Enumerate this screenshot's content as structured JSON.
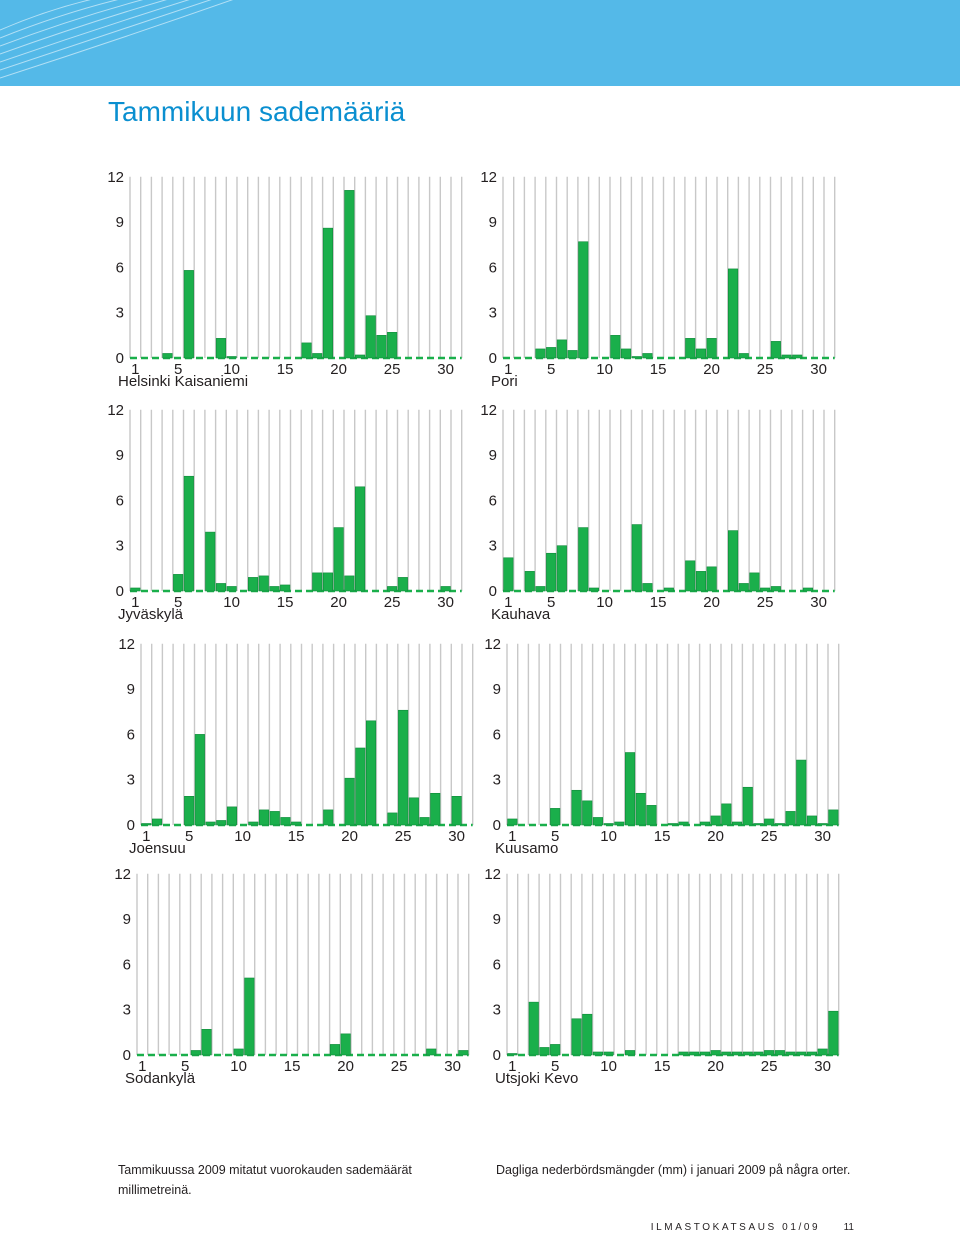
{
  "page": {
    "title": "Tammikuun sademääriä",
    "caption_fi": "Tammikuussa 2009 mitatut vuorokauden sademäärät millimetreinä.",
    "caption_sv": "Dagliga nederbördsmängder (mm) i januari 2009 på några orter.",
    "footer_publication": "ILMASTOKATSAUS 01/09",
    "footer_page": "11"
  },
  "colors": {
    "bar": "#1aaf4b",
    "bar_edge": "#0f8a3a",
    "grid": "#c8c8c8",
    "zero_dash": "#1aaf4b",
    "banner": "#54b9e8",
    "title": "#0a8fd0"
  },
  "chart_data": [
    {
      "type": "bar",
      "station": "Helsinki Kaisaniemi",
      "x": [
        1,
        2,
        3,
        4,
        5,
        6,
        7,
        8,
        9,
        10,
        11,
        12,
        13,
        14,
        15,
        16,
        17,
        18,
        19,
        20,
        21,
        22,
        23,
        24,
        25,
        26,
        27,
        28,
        29,
        30,
        31
      ],
      "xticks": [
        1,
        5,
        10,
        15,
        20,
        25,
        30
      ],
      "yticks": [
        0,
        3,
        6,
        9,
        12
      ],
      "ylim": [
        0,
        12
      ],
      "values": [
        0,
        0,
        0,
        0.3,
        0,
        5.8,
        0,
        0,
        1.3,
        0.1,
        0,
        0,
        0,
        0,
        0,
        0,
        1.0,
        0.3,
        8.6,
        0,
        11.1,
        0.2,
        2.8,
        1.5,
        1.7,
        0,
        0,
        0,
        0,
        0,
        0
      ]
    },
    {
      "type": "bar",
      "station": "Pori",
      "x": [
        1,
        2,
        3,
        4,
        5,
        6,
        7,
        8,
        9,
        10,
        11,
        12,
        13,
        14,
        15,
        16,
        17,
        18,
        19,
        20,
        21,
        22,
        23,
        24,
        25,
        26,
        27,
        28,
        29,
        30,
        31
      ],
      "xticks": [
        1,
        5,
        10,
        15,
        20,
        25,
        30
      ],
      "yticks": [
        0,
        3,
        6,
        9,
        12
      ],
      "ylim": [
        0,
        12
      ],
      "values": [
        0,
        0,
        0,
        0.6,
        0.7,
        1.2,
        0.5,
        7.7,
        0,
        0,
        1.5,
        0.6,
        0.1,
        0.3,
        0,
        0,
        0,
        1.3,
        0.6,
        1.3,
        0,
        5.9,
        0.3,
        0,
        0,
        1.1,
        0.2,
        0.2,
        0,
        0,
        0
      ]
    },
    {
      "type": "bar",
      "station": "Jyväskylä",
      "x": [
        1,
        2,
        3,
        4,
        5,
        6,
        7,
        8,
        9,
        10,
        11,
        12,
        13,
        14,
        15,
        16,
        17,
        18,
        19,
        20,
        21,
        22,
        23,
        24,
        25,
        26,
        27,
        28,
        29,
        30,
        31
      ],
      "xticks": [
        1,
        5,
        10,
        15,
        20,
        25,
        30
      ],
      "yticks": [
        0,
        3,
        6,
        9,
        12
      ],
      "ylim": [
        0,
        12
      ],
      "values": [
        0.2,
        0,
        0,
        0,
        1.1,
        7.6,
        0,
        3.9,
        0.5,
        0.3,
        0,
        0.9,
        1.0,
        0.3,
        0.4,
        0,
        0,
        1.2,
        1.2,
        4.2,
        1.0,
        6.9,
        0,
        0,
        0.3,
        0.9,
        0,
        0,
        0,
        0.3,
        0
      ]
    },
    {
      "type": "bar",
      "station": "Kauhava",
      "x": [
        1,
        2,
        3,
        4,
        5,
        6,
        7,
        8,
        9,
        10,
        11,
        12,
        13,
        14,
        15,
        16,
        17,
        18,
        19,
        20,
        21,
        22,
        23,
        24,
        25,
        26,
        27,
        28,
        29,
        30,
        31
      ],
      "xticks": [
        1,
        5,
        10,
        15,
        20,
        25,
        30
      ],
      "yticks": [
        0,
        3,
        6,
        9,
        12
      ],
      "ylim": [
        0,
        12
      ],
      "values": [
        2.2,
        0,
        1.3,
        0.3,
        2.5,
        3.0,
        0,
        4.2,
        0.2,
        0,
        0,
        0,
        4.4,
        0.5,
        0,
        0.2,
        0,
        2.0,
        1.3,
        1.6,
        0,
        4.0,
        0.5,
        1.2,
        0.2,
        0.3,
        0,
        0,
        0.2,
        0,
        0
      ]
    },
    {
      "type": "bar",
      "station": "Joensuu",
      "x": [
        1,
        2,
        3,
        4,
        5,
        6,
        7,
        8,
        9,
        10,
        11,
        12,
        13,
        14,
        15,
        16,
        17,
        18,
        19,
        20,
        21,
        22,
        23,
        24,
        25,
        26,
        27,
        28,
        29,
        30,
        31
      ],
      "xticks": [
        1,
        5,
        10,
        15,
        20,
        25,
        30
      ],
      "yticks": [
        0,
        3,
        6,
        9,
        12
      ],
      "ylim": [
        0,
        12
      ],
      "values": [
        0.1,
        0.4,
        0,
        0,
        1.9,
        6.0,
        0.2,
        0.3,
        1.2,
        0,
        0.2,
        1.0,
        0.9,
        0.5,
        0.2,
        0,
        0,
        1.0,
        0,
        3.1,
        5.1,
        6.9,
        0,
        0.8,
        7.6,
        1.8,
        0.5,
        2.1,
        0,
        1.9,
        0
      ]
    },
    {
      "type": "bar",
      "station": "Kuusamo",
      "x": [
        1,
        2,
        3,
        4,
        5,
        6,
        7,
        8,
        9,
        10,
        11,
        12,
        13,
        14,
        15,
        16,
        17,
        18,
        19,
        20,
        21,
        22,
        23,
        24,
        25,
        26,
        27,
        28,
        29,
        30,
        31
      ],
      "xticks": [
        1,
        5,
        10,
        15,
        20,
        25,
        30
      ],
      "yticks": [
        0,
        3,
        6,
        9,
        12
      ],
      "ylim": [
        0,
        12
      ],
      "values": [
        0.4,
        0,
        0,
        0,
        1.1,
        0,
        2.3,
        1.6,
        0.5,
        0.1,
        0.2,
        4.8,
        2.1,
        1.3,
        0,
        0.1,
        0.2,
        0,
        0.2,
        0.6,
        1.4,
        0.2,
        2.5,
        0.1,
        0.4,
        0.1,
        0.9,
        4.3,
        0.6,
        0.1,
        1.0
      ]
    },
    {
      "type": "bar",
      "station": "Sodankylä",
      "x": [
        1,
        2,
        3,
        4,
        5,
        6,
        7,
        8,
        9,
        10,
        11,
        12,
        13,
        14,
        15,
        16,
        17,
        18,
        19,
        20,
        21,
        22,
        23,
        24,
        25,
        26,
        27,
        28,
        29,
        30,
        31
      ],
      "xticks": [
        1,
        5,
        10,
        15,
        20,
        25,
        30
      ],
      "yticks": [
        0,
        3,
        6,
        9,
        12
      ],
      "ylim": [
        0,
        12
      ],
      "values": [
        0,
        0,
        0,
        0,
        0,
        0.3,
        1.7,
        0,
        0,
        0.4,
        5.1,
        0,
        0,
        0,
        0,
        0,
        0,
        0,
        0.7,
        1.4,
        0,
        0,
        0,
        0,
        0,
        0,
        0,
        0.4,
        0,
        0,
        0.3
      ]
    },
    {
      "type": "bar",
      "station": "Utsjoki Kevo",
      "x": [
        1,
        2,
        3,
        4,
        5,
        6,
        7,
        8,
        9,
        10,
        11,
        12,
        13,
        14,
        15,
        16,
        17,
        18,
        19,
        20,
        21,
        22,
        23,
        24,
        25,
        26,
        27,
        28,
        29,
        30,
        31
      ],
      "xticks": [
        1,
        5,
        10,
        15,
        20,
        25,
        30
      ],
      "yticks": [
        0,
        3,
        6,
        9,
        12
      ],
      "ylim": [
        0,
        12
      ],
      "values": [
        0.1,
        0,
        3.5,
        0.5,
        0.7,
        0,
        2.4,
        2.7,
        0.2,
        0.2,
        0,
        0.3,
        0,
        0,
        0,
        0,
        0.2,
        0.2,
        0.2,
        0.3,
        0.2,
        0.2,
        0.2,
        0.2,
        0.3,
        0.3,
        0.2,
        0.2,
        0.2,
        0.4,
        2.9
      ]
    }
  ]
}
